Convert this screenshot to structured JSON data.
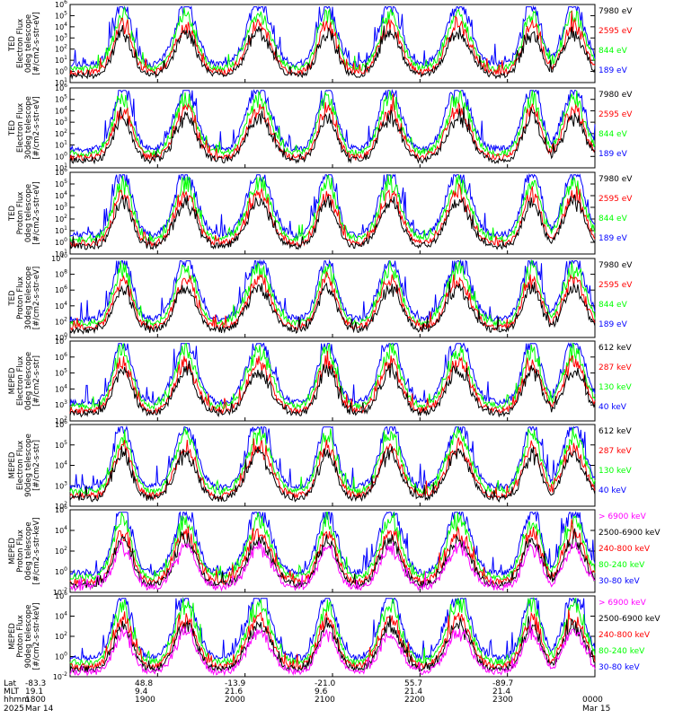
{
  "colors": {
    "blue": "#0000ff",
    "red": "#ff0000",
    "green": "#00ff00",
    "black": "#000000",
    "magenta": "#ff00ff"
  },
  "chart_data": [
    {
      "type": "line",
      "ylabel": [
        "TED",
        "Electron Flux",
        "0deg telescope",
        "[#/cm2-s-str-eV]"
      ],
      "yticks": [
        "10^1",
        "10^0",
        "10^1",
        "10^2",
        "10^3",
        "10^4",
        "10^5",
        "10^6"
      ],
      "ylog": [
        -1,
        6
      ],
      "series": [
        {
          "name": "7980 eV",
          "color": "black"
        },
        {
          "name": "2595 eV",
          "color": "red"
        },
        {
          "name": "844 eV",
          "color": "green"
        },
        {
          "name": "189 eV",
          "color": "blue"
        }
      ]
    },
    {
      "type": "line",
      "ylabel": [
        "TED",
        "Electron Flux",
        "30deg telescope",
        "[#/cm2-s-str-eV]"
      ],
      "yticks": [
        "10^1",
        "10^0",
        "10^1",
        "10^2",
        "10^3",
        "10^4",
        "10^5",
        "10^6"
      ],
      "ylog": [
        -1,
        6
      ],
      "series": [
        {
          "name": "7980 eV",
          "color": "black"
        },
        {
          "name": "2595 eV",
          "color": "red"
        },
        {
          "name": "844 eV",
          "color": "green"
        },
        {
          "name": "189 eV",
          "color": "blue"
        }
      ]
    },
    {
      "type": "line",
      "ylabel": [
        "TED",
        "Proton Flux",
        "0deg telescope",
        "[#/cm2-s-str-eV]"
      ],
      "yticks": [
        "10^1",
        "10^0",
        "10^1",
        "10^2",
        "10^3",
        "10^4",
        "10^5",
        "10^6"
      ],
      "ylog": [
        -1,
        6
      ],
      "series": [
        {
          "name": "7980 eV",
          "color": "black"
        },
        {
          "name": "2595 eV",
          "color": "red"
        },
        {
          "name": "844 eV",
          "color": "green"
        },
        {
          "name": "189 eV",
          "color": "blue"
        }
      ]
    },
    {
      "type": "line",
      "ylabel": [
        "TED",
        "Proton Flux",
        "30deg telescope",
        "[#/cm2-s-str-eV]"
      ],
      "yticks": [
        "10^0",
        "10^2",
        "10^4",
        "10^6",
        "10^8",
        "10^10"
      ],
      "ylog": [
        0,
        10
      ],
      "series": [
        {
          "name": "7980 eV",
          "color": "black"
        },
        {
          "name": "2595 eV",
          "color": "red"
        },
        {
          "name": "844 eV",
          "color": "green"
        },
        {
          "name": "189 eV",
          "color": "blue"
        }
      ]
    },
    {
      "type": "line",
      "ylabel": [
        "MEPED",
        "Electron Flux",
        "0deg telescope",
        "[#/cm2-s-str]"
      ],
      "yticks": [
        "10^2",
        "10^3",
        "10^4",
        "10^5",
        "10^6",
        "10^7"
      ],
      "ylog": [
        2,
        7
      ],
      "series": [
        {
          "name": "612 keV",
          "color": "black"
        },
        {
          "name": "287 keV",
          "color": "red"
        },
        {
          "name": "130 keV",
          "color": "green"
        },
        {
          "name": "40 keV",
          "color": "blue"
        }
      ]
    },
    {
      "type": "line",
      "ylabel": [
        "MEPED",
        "Electron Flux",
        "90deg telescope",
        "[#/cm2-s-str]"
      ],
      "yticks": [
        "10^2",
        "10^3",
        "10^4",
        "10^5",
        "10^6"
      ],
      "ylog": [
        2,
        6
      ],
      "series": [
        {
          "name": "612 keV",
          "color": "black"
        },
        {
          "name": "287 keV",
          "color": "red"
        },
        {
          "name": "130 keV",
          "color": "green"
        },
        {
          "name": "40 keV",
          "color": "blue"
        }
      ]
    },
    {
      "type": "line",
      "ylabel": [
        "MEPED",
        "Proton Flux",
        "0deg telescope",
        "[#/cm2-s-str-keV]"
      ],
      "yticks": [
        "10^-2",
        "10^0",
        "10^2",
        "10^4",
        "10^6"
      ],
      "ylog": [
        -2,
        6
      ],
      "series": [
        {
          "name": "> 6900 keV",
          "color": "magenta"
        },
        {
          "name": "2500-6900 keV",
          "color": "black"
        },
        {
          "name": "240-800 keV",
          "color": "red"
        },
        {
          "name": "80-240 keV",
          "color": "green"
        },
        {
          "name": "30-80 keV",
          "color": "blue"
        }
      ]
    },
    {
      "type": "line",
      "ylabel": [
        "MEPED",
        "Proton Flux",
        "90deg telescope",
        "[#/cm2-s-str-keV]"
      ],
      "yticks": [
        "10^-2",
        "10^0",
        "10^2",
        "10^4",
        "10^6"
      ],
      "ylog": [
        -2,
        6
      ],
      "series": [
        {
          "name": "> 6900 keV",
          "color": "magenta"
        },
        {
          "name": "2500-6900 keV",
          "color": "black"
        },
        {
          "name": "240-800 keV",
          "color": "red"
        },
        {
          "name": "80-240 keV",
          "color": "green"
        },
        {
          "name": "30-80 keV",
          "color": "blue"
        }
      ]
    }
  ],
  "axis_rows": {
    "labels": [
      "Lat",
      "MLT",
      "hhmm",
      "2025"
    ],
    "columns": [
      {
        "lat": "-83.3",
        "mlt": "19.1",
        "hhmm": "1800",
        "date": "Mar 14"
      },
      {
        "lat": "48.8",
        "mlt": "9.4",
        "hhmm": "1900",
        "date": ""
      },
      {
        "lat": "-13.9",
        "mlt": "21.6",
        "hhmm": "2000",
        "date": ""
      },
      {
        "lat": "-21.0",
        "mlt": "9.6",
        "hhmm": "2100",
        "date": ""
      },
      {
        "lat": "55.7",
        "mlt": "21.4",
        "hhmm": "2200",
        "date": ""
      },
      {
        "lat": "-89.7",
        "mlt": "21.4",
        "hhmm": "2300",
        "date": ""
      },
      {
        "lat": "",
        "mlt": "",
        "hhmm": "0000",
        "date": "Mar 15"
      }
    ]
  }
}
